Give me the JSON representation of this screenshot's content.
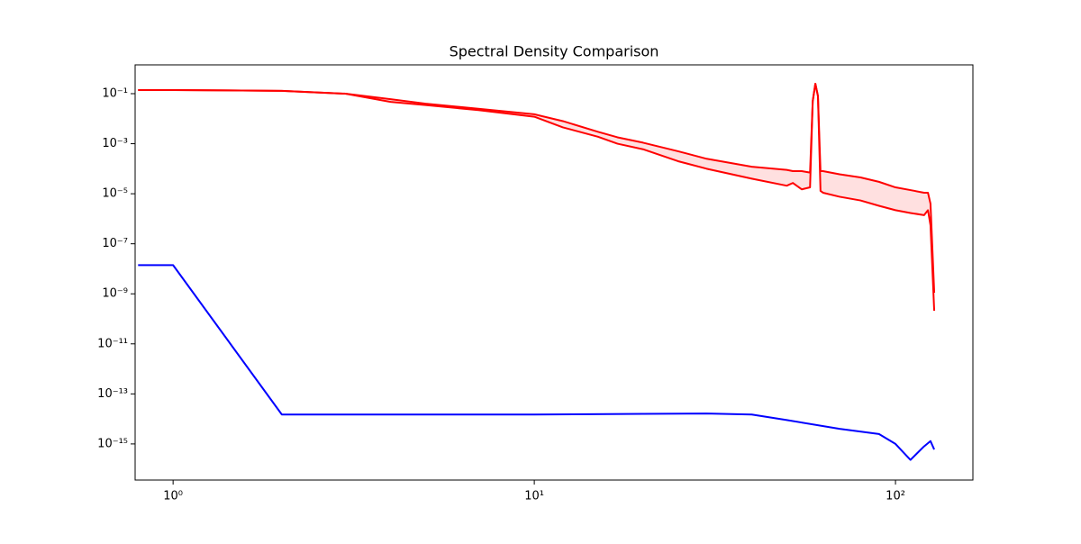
{
  "chart_data": {
    "type": "line",
    "title": "Spectral Density Comparison",
    "xscale": "log",
    "yscale": "log",
    "xlim": [
      0.785,
      163.8
    ],
    "ylim": [
      3.6e-17,
      1.42
    ],
    "xticks": [
      {
        "value": 1,
        "label": "10⁰"
      },
      {
        "value": 10,
        "label": "10¹"
      },
      {
        "value": 100,
        "label": "10²"
      }
    ],
    "yticks": [
      {
        "value": 1e-15,
        "label": "10⁻¹⁵"
      },
      {
        "value": 1e-13,
        "label": "10⁻¹³"
      },
      {
        "value": 1e-11,
        "label": "10⁻¹¹"
      },
      {
        "value": 1e-09,
        "label": "10⁻⁹"
      },
      {
        "value": 1e-07,
        "label": "10⁻⁷"
      },
      {
        "value": 1e-05,
        "label": "10⁻⁵"
      },
      {
        "value": 0.001,
        "label": "10⁻³"
      },
      {
        "value": 0.1,
        "label": "10⁻¹"
      }
    ],
    "fill_color": "red",
    "fill_opacity": 0.12,
    "series": [
      {
        "color": "red",
        "x": [
          0.8,
          1,
          2,
          3,
          4,
          5,
          7,
          10,
          12,
          15,
          17,
          20,
          25,
          30,
          40,
          50,
          52,
          55,
          58,
          59,
          60,
          61,
          62,
          63,
          70,
          80,
          90,
          100,
          110,
          120,
          123,
          125,
          128
        ],
        "values": [
          0.14,
          0.14,
          0.13,
          0.1,
          0.06,
          0.04,
          0.025,
          0.015,
          0.008,
          0.003,
          0.0018,
          0.0011,
          0.0005,
          0.00025,
          0.00012,
          9e-05,
          8e-05,
          8e-05,
          7e-05,
          0.05,
          0.25,
          0.08,
          8e-05,
          8e-05,
          6e-05,
          4.5e-05,
          3e-05,
          1.8e-05,
          1.4e-05,
          1.1e-05,
          1.1e-05,
          4e-06,
          1.1e-09
        ]
      },
      {
        "color": "red",
        "x": [
          0.8,
          1,
          2,
          3,
          4,
          5,
          7,
          10,
          12,
          15,
          17,
          20,
          25,
          30,
          40,
          50,
          52,
          55,
          58,
          59,
          60,
          61,
          62,
          63,
          70,
          80,
          90,
          100,
          110,
          120,
          123,
          125,
          128
        ],
        "values": [
          0.14,
          0.14,
          0.13,
          0.1,
          0.047,
          0.035,
          0.022,
          0.012,
          0.0045,
          0.0019,
          0.001,
          0.0006,
          0.0002,
          0.0001,
          4e-05,
          2.1e-05,
          2.7e-05,
          1.5e-05,
          1.8e-05,
          0.05,
          0.25,
          0.08,
          1.3e-05,
          1.1e-05,
          7.6e-06,
          5.4e-06,
          3.3e-06,
          2.2e-06,
          1.7e-06,
          1.4e-06,
          2.2e-06,
          5.5e-07,
          2.1e-10
        ]
      },
      {
        "color": "blue",
        "x": [
          0.8,
          1,
          2,
          5,
          10,
          20,
          30,
          40,
          50,
          70,
          90,
          100,
          110,
          120,
          125,
          128
        ],
        "values": [
          1.4e-08,
          1.4e-08,
          1.5e-14,
          1.5e-14,
          1.5e-14,
          1.6e-14,
          1.65e-14,
          1.5e-14,
          9e-15,
          4e-15,
          2.5e-15,
          1e-15,
          2.3e-16,
          8e-16,
          1.3e-15,
          6e-16
        ]
      }
    ]
  }
}
